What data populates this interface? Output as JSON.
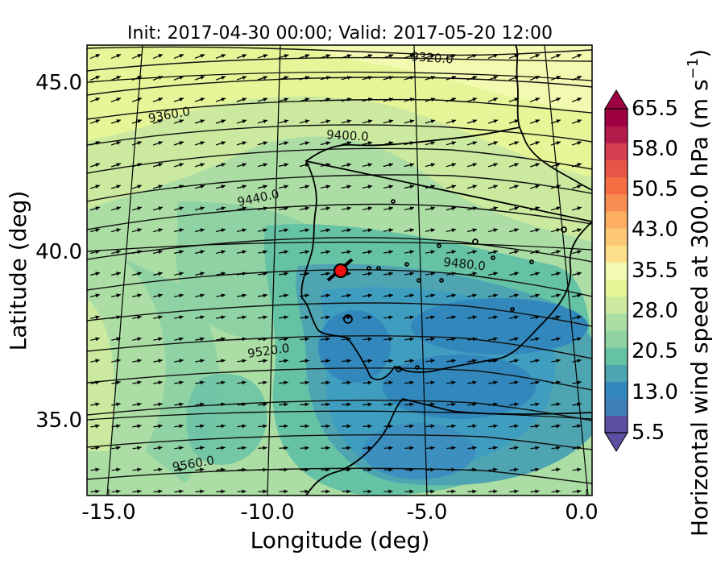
{
  "figure": {
    "title": "Init: 2017-04-30 00:00; Valid: 2017-05-20 12:00",
    "xlabel": "Longitude (deg)",
    "ylabel": "Latitude (deg)",
    "colorbar_label": "Horizontal wind speed at 300.0 hPa (m s$^{-1}$)",
    "colorbar_label_parts": {
      "main": "Horizontal wind speed at 300.0 hPa (m s",
      "exponent": "−1",
      "close": ")"
    }
  },
  "map": {
    "type": "filled-contour-map",
    "region": "Iberian Peninsula",
    "projection": "oblique (curved graticule)",
    "x_ticks": [
      "-15.0",
      "-10.0",
      "-5.0",
      "0.0"
    ],
    "y_ticks": [
      "45.0",
      "40.0",
      "35.0"
    ],
    "colorbar_ticks": [
      "65.5",
      "58.0",
      "50.5",
      "43.0",
      "35.5",
      "28.0",
      "20.5",
      "13.0",
      "5.5"
    ],
    "colorbar_range": [
      5.5,
      65.5
    ],
    "colorbar_palette": [
      "#5e4fa2",
      "#3f7fb8",
      "#3288bd",
      "#4ea5b1",
      "#66c2a5",
      "#8fd3a4",
      "#abdda4",
      "#cbe99f",
      "#e6f598",
      "#f2f9b0",
      "#fee08b",
      "#fdc877",
      "#fdae61",
      "#f88d52",
      "#f46d43",
      "#e55649",
      "#d53e4f",
      "#b31c4a",
      "#9e0142"
    ],
    "contour_labels": [
      "9320.0",
      "9360.0",
      "9400.0",
      "9440.0",
      "9480.0",
      "9520.0",
      "9560.0"
    ],
    "marker": {
      "lon": -7.6,
      "lat": 39.3,
      "color": "#ee1111"
    },
    "wind_direction": "southwest to northeast",
    "grid": true
  }
}
